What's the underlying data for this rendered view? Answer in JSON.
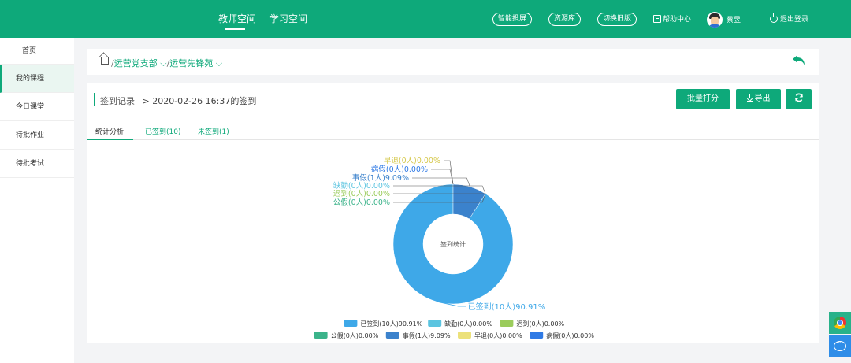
{
  "header": {
    "nav": [
      "教师空间",
      "学习空间"
    ],
    "pills": [
      "智能投屏",
      "资源库",
      "切换旧版"
    ],
    "help": "帮助中心",
    "user": "蔡昱",
    "logout": "退出登录"
  },
  "sidebar": {
    "items": [
      "首页",
      "我的课程",
      "今日课堂",
      "待批作业",
      "待批考试"
    ]
  },
  "breadcrumb": {
    "items": [
      "运营党支部",
      "运营先锋苑"
    ]
  },
  "record": {
    "title": "签到记录",
    "subtitle": "2020-02-26 16:37的签到"
  },
  "buttons": {
    "batch": "批量打分",
    "export": "导出"
  },
  "tabs": [
    "统计分析",
    "已签到(10)",
    "未签到(1)"
  ],
  "chart_data": {
    "type": "pie",
    "title": "",
    "center_label": "签到统计",
    "inner_radius_ratio": 0.5,
    "slices": [
      {
        "name": "已签到",
        "count": 10,
        "percent": 90.91,
        "color": "#3ea8e8",
        "label": "已签到(10人)90.91%"
      },
      {
        "name": "缺勤",
        "count": 0,
        "percent": 0.0,
        "color": "#5bc4e0",
        "label": "缺勤(0人)0.00%"
      },
      {
        "name": "迟到",
        "count": 0,
        "percent": 0.0,
        "color": "#9bcc5c",
        "label": "迟到(0人)0.00%"
      },
      {
        "name": "公假",
        "count": 0,
        "percent": 0.0,
        "color": "#3bb38a",
        "label": "公假(0人)0.00%"
      },
      {
        "name": "事假",
        "count": 1,
        "percent": 9.09,
        "color": "#3b82cc",
        "label": "事假(1人)9.09%"
      },
      {
        "name": "早退",
        "count": 0,
        "percent": 0.0,
        "color": "#ece17a",
        "label": "早退(0人)0.00%"
      },
      {
        "name": "病假",
        "count": 0,
        "percent": 0.0,
        "color": "#2f7ae5",
        "label": "病假(0人)0.00%"
      }
    ],
    "legend": [
      [
        "已签到(10人)90.91%",
        "缺勤(0人)0.00%",
        "迟到(0人)0.00%"
      ],
      [
        "公假(0人)0.00%",
        "事假(1人)9.09%",
        "早退(0人)0.00%",
        "病假(0人)0.00%"
      ]
    ],
    "legend_position": "bottom"
  },
  "colors": {
    "brand": "#0ea97a",
    "background": "#f3f4f6"
  }
}
